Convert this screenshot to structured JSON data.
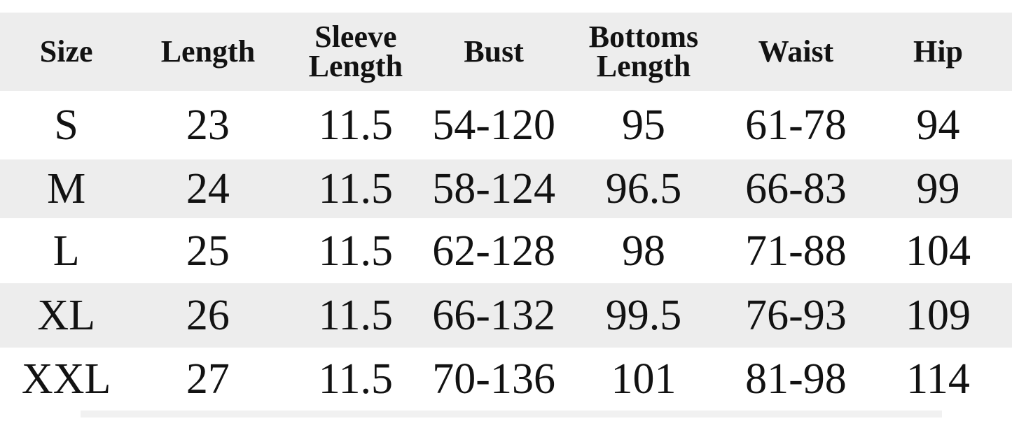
{
  "colors": {
    "stripe_gray": "#ededed",
    "text": "#121212",
    "background": "#ffffff"
  },
  "chart_data": {
    "type": "table",
    "columns": [
      "Size",
      "Length",
      "Sleeve Length",
      "Bust",
      "Bottoms Length",
      "Waist",
      "Hip"
    ],
    "rows": [
      [
        "S",
        "23",
        "11.5",
        "54-120",
        "95",
        "61-78",
        "94"
      ],
      [
        "M",
        "24",
        "11.5",
        "58-124",
        "96.5",
        "66-83",
        "99"
      ],
      [
        "L",
        "25",
        "11.5",
        "62-128",
        "98",
        "71-88",
        "104"
      ],
      [
        "XL",
        "26",
        "11.5",
        "66-132",
        "99.5",
        "76-93",
        "109"
      ],
      [
        "XXL",
        "27",
        "11.5",
        "70-136",
        "101",
        "81-98",
        "114"
      ]
    ],
    "layout": {
      "striped": true,
      "striped_rows": [
        "header",
        "M",
        "XL"
      ],
      "header_position": "top",
      "grid": false
    }
  }
}
